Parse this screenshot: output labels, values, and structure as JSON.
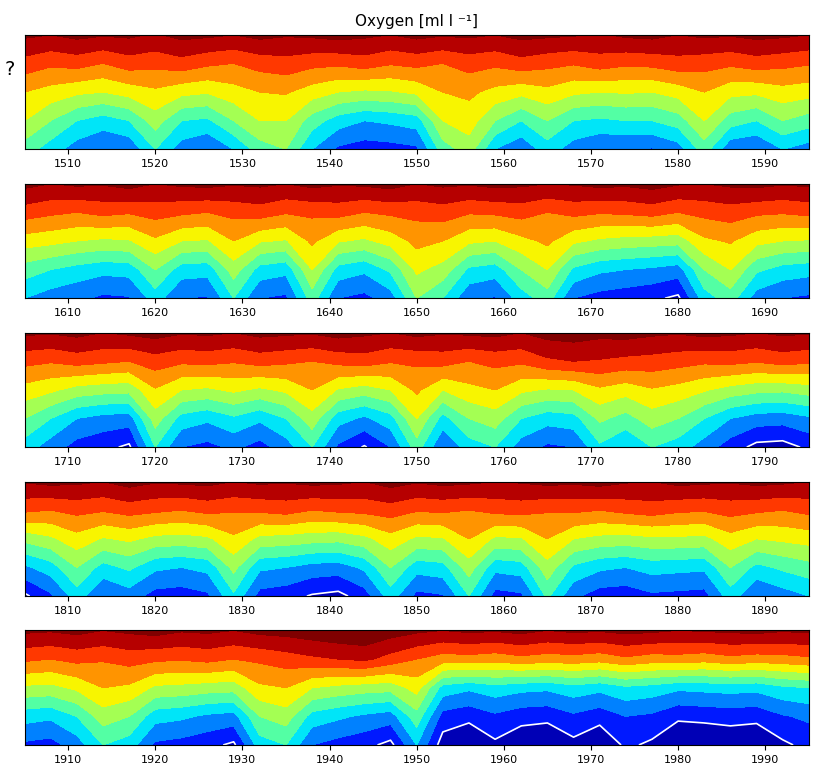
{
  "chart_data": [
    {
      "type": "contour",
      "title": "Oxygen [ml l ⁻¹]",
      "annotations": [
        "?"
      ],
      "tick_labels": "x",
      "x": [
        1505,
        1508,
        1511,
        1514,
        1517,
        1520,
        1523,
        1526,
        1529,
        1532,
        1535,
        1538,
        1541,
        1544,
        1547,
        1550,
        1553,
        1556,
        1559,
        1562,
        1565,
        1568,
        1571,
        1574,
        1577,
        1580,
        1583,
        1586,
        1589,
        1592,
        1595
      ],
      "xlim": [
        1505,
        1595
      ],
      "xticks": [
        1510,
        1520,
        1530,
        1540,
        1550,
        1560,
        1570,
        1580,
        1590
      ],
      "depth": [
        0,
        25,
        50,
        75,
        100
      ],
      "ylim": [
        100,
        0
      ],
      "yticks": [],
      "levels": [
        -1,
        0,
        1,
        2,
        3,
        4,
        5,
        6,
        7,
        8,
        9
      ],
      "contour_level": 0,
      "cells": [
        [
          9.2,
          9.0,
          9.3,
          9.1,
          9.2,
          8.9,
          9.3,
          9.2,
          9.0,
          9.3,
          9.1,
          9.2,
          9.4,
          9.2,
          9.0,
          9.3,
          9.1,
          9.2,
          9.0,
          9.3,
          9.2,
          9.1,
          8.9,
          9.2,
          9.3,
          9.0,
          9.2,
          9.1,
          9.3,
          9.2,
          9.0
        ],
        [
          7.6,
          7.2,
          7.4,
          7.0,
          7.5,
          7.3,
          7.6,
          7.2,
          7.0,
          7.4,
          7.6,
          7.3,
          7.2,
          7.5,
          7.1,
          7.3,
          7.0,
          7.4,
          7.2,
          7.6,
          7.3,
          7.1,
          7.5,
          7.2,
          7.3,
          7.6,
          7.4,
          7.2,
          7.5,
          7.3,
          7.1
        ],
        [
          6.0,
          5.6,
          5.2,
          5.0,
          5.4,
          5.8,
          5.3,
          5.1,
          5.6,
          6.0,
          6.1,
          5.5,
          5.0,
          4.8,
          4.9,
          5.2,
          6.0,
          6.2,
          5.7,
          5.3,
          5.7,
          5.2,
          5.0,
          5.1,
          5.0,
          5.4,
          6.0,
          5.3,
          5.2,
          5.6,
          5.4
        ],
        [
          5.0,
          4.0,
          3.0,
          2.5,
          3.0,
          4.5,
          3.0,
          2.8,
          4.0,
          5.0,
          5.0,
          3.5,
          2.5,
          2.0,
          2.2,
          2.5,
          5.0,
          5.5,
          4.0,
          3.0,
          4.0,
          3.0,
          2.8,
          3.0,
          3.0,
          3.5,
          5.0,
          3.5,
          3.0,
          4.0,
          3.5
        ],
        [
          3.5,
          2.5,
          1.5,
          1.0,
          1.2,
          3.0,
          1.5,
          1.0,
          2.0,
          3.5,
          4.0,
          2.0,
          0.8,
          0.5,
          0.6,
          0.8,
          3.5,
          4.5,
          2.0,
          1.2,
          2.5,
          1.5,
          1.0,
          1.0,
          0.9,
          1.5,
          3.5,
          1.2,
          1.0,
          2.0,
          1.5
        ]
      ]
    },
    {
      "type": "contour",
      "tick_labels": "x",
      "x": [
        1605,
        1608,
        1611,
        1614,
        1617,
        1620,
        1623,
        1626,
        1629,
        1632,
        1635,
        1638,
        1641,
        1644,
        1647,
        1650,
        1653,
        1656,
        1659,
        1662,
        1665,
        1668,
        1671,
        1674,
        1677,
        1680,
        1683,
        1686,
        1689,
        1692,
        1695
      ],
      "xlim": [
        1605,
        1695
      ],
      "xticks": [
        1610,
        1620,
        1630,
        1640,
        1650,
        1660,
        1670,
        1680,
        1690
      ],
      "depth": [
        0,
        25,
        50,
        75,
        100
      ],
      "ylim": [
        100,
        0
      ],
      "yticks": [],
      "levels": [
        -1,
        0,
        1,
        2,
        3,
        4,
        5,
        6,
        7,
        8,
        9
      ],
      "contour_level": 0,
      "cells": [
        [
          9.3,
          9.0,
          9.2,
          9.1,
          9.4,
          9.0,
          9.2,
          9.3,
          9.1,
          9.2,
          9.0,
          9.3,
          9.1,
          9.2,
          9.4,
          9.0,
          9.2,
          9.1,
          9.3,
          9.2,
          9.0,
          9.1,
          9.3,
          9.2,
          9.4,
          9.1,
          9.0,
          9.2,
          9.3,
          9.1,
          9.2
        ],
        [
          7.5,
          7.2,
          7.0,
          7.3,
          7.1,
          7.4,
          7.2,
          7.0,
          7.3,
          7.5,
          7.1,
          7.2,
          7.4,
          7.0,
          7.2,
          7.3,
          7.5,
          7.1,
          7.2,
          7.4,
          7.0,
          7.3,
          7.1,
          7.2,
          7.4,
          7.0,
          7.3,
          7.5,
          7.2,
          7.1,
          7.3
        ],
        [
          5.5,
          5.3,
          5.0,
          4.8,
          4.9,
          5.8,
          5.0,
          4.9,
          6.0,
          5.1,
          4.9,
          6.2,
          5.1,
          4.8,
          5.4,
          6.3,
          6.0,
          5.2,
          5.0,
          5.7,
          6.2,
          5.2,
          4.8,
          4.6,
          4.5,
          4.4,
          5.8,
          6.1,
          5.3,
          5.0,
          4.9
        ],
        [
          3.5,
          3.0,
          2.6,
          2.3,
          2.4,
          4.0,
          2.5,
          2.4,
          4.5,
          2.6,
          2.3,
          5.0,
          2.6,
          2.2,
          3.2,
          5.2,
          4.6,
          2.8,
          2.5,
          4.0,
          5.0,
          2.8,
          2.2,
          2.0,
          1.8,
          1.5,
          4.0,
          5.0,
          3.2,
          2.6,
          2.4
        ],
        [
          2.0,
          1.5,
          1.2,
          0.8,
          0.9,
          2.5,
          1.0,
          0.9,
          3.0,
          1.0,
          0.8,
          3.5,
          1.0,
          0.7,
          1.5,
          4.0,
          3.0,
          1.2,
          0.9,
          2.5,
          3.5,
          1.0,
          0.6,
          0.4,
          0.2,
          -0.2,
          2.5,
          3.5,
          1.5,
          1.0,
          0.8
        ]
      ]
    },
    {
      "type": "contour",
      "tick_labels": "x",
      "x": [
        1705,
        1708,
        1711,
        1714,
        1717,
        1720,
        1723,
        1726,
        1729,
        1732,
        1735,
        1738,
        1741,
        1744,
        1747,
        1750,
        1753,
        1756,
        1759,
        1762,
        1765,
        1768,
        1771,
        1774,
        1777,
        1780,
        1783,
        1786,
        1789,
        1792,
        1795
      ],
      "xlim": [
        1705,
        1795
      ],
      "xticks": [
        1710,
        1720,
        1730,
        1740,
        1750,
        1760,
        1770,
        1780,
        1790
      ],
      "depth": [
        0,
        25,
        50,
        75,
        100
      ],
      "ylim": [
        100,
        0
      ],
      "yticks": [],
      "levels": [
        -1,
        0,
        1,
        2,
        3,
        4,
        5,
        6,
        7,
        8,
        9
      ],
      "contour_level": 0,
      "cells": [
        [
          9.2,
          9.1,
          9.3,
          9.0,
          9.2,
          9.4,
          9.1,
          9.2,
          9.0,
          9.3,
          9.2,
          9.1,
          9.4,
          9.2,
          9.0,
          9.3,
          9.1,
          9.2,
          9.3,
          9.0,
          9.4,
          9.5,
          9.3,
          9.4,
          9.2,
          9.1,
          9.3,
          9.2,
          9.0,
          9.2,
          9.1
        ],
        [
          7.3,
          7.1,
          7.4,
          7.2,
          7.0,
          7.5,
          7.2,
          7.3,
          7.1,
          7.4,
          7.2,
          7.0,
          7.3,
          7.5,
          7.1,
          7.2,
          7.4,
          7.0,
          7.3,
          7.2,
          7.8,
          8.0,
          7.9,
          7.7,
          7.6,
          7.4,
          7.2,
          7.3,
          7.1,
          7.4,
          7.2
        ],
        [
          5.6,
          5.2,
          4.6,
          4.4,
          4.3,
          5.9,
          5.0,
          4.8,
          5.2,
          4.8,
          5.2,
          6.0,
          4.9,
          4.5,
          5.0,
          6.2,
          5.0,
          5.7,
          6.0,
          5.2,
          4.9,
          5.0,
          5.8,
          5.4,
          5.9,
          5.6,
          5.1,
          4.6,
          4.3,
          4.2,
          4.5
        ],
        [
          4.0,
          3.0,
          2.0,
          1.6,
          1.5,
          4.5,
          2.6,
          2.2,
          2.8,
          2.2,
          3.0,
          4.6,
          2.4,
          1.8,
          2.6,
          5.0,
          2.6,
          4.0,
          4.5,
          3.0,
          2.4,
          2.6,
          4.2,
          3.6,
          4.5,
          4.0,
          3.0,
          2.0,
          1.5,
          1.4,
          1.8
        ],
        [
          2.5,
          1.5,
          0.6,
          0.3,
          -0.2,
          3.0,
          1.0,
          0.7,
          1.2,
          0.6,
          1.5,
          3.0,
          0.8,
          -0.1,
          1.0,
          3.5,
          1.0,
          2.5,
          3.0,
          1.5,
          0.8,
          1.0,
          2.8,
          2.0,
          3.0,
          2.5,
          1.5,
          0.5,
          -0.3,
          -0.4,
          0.2
        ]
      ]
    },
    {
      "type": "contour",
      "tick_labels": "x",
      "x": [
        1805,
        1808,
        1811,
        1814,
        1817,
        1820,
        1823,
        1826,
        1829,
        1832,
        1835,
        1838,
        1841,
        1844,
        1847,
        1850,
        1853,
        1856,
        1859,
        1862,
        1865,
        1868,
        1871,
        1874,
        1877,
        1880,
        1883,
        1886,
        1889,
        1892,
        1895
      ],
      "xlim": [
        1805,
        1895
      ],
      "xticks": [
        1810,
        1820,
        1830,
        1840,
        1850,
        1860,
        1870,
        1880,
        1890
      ],
      "depth": [
        0,
        25,
        50,
        75,
        100
      ],
      "ylim": [
        100,
        0
      ],
      "yticks": [],
      "levels": [
        -1,
        0,
        1,
        2,
        3,
        4,
        5,
        6,
        7,
        8,
        9
      ],
      "contour_level": 0,
      "cells": [
        [
          9.1,
          9.3,
          9.2,
          9.0,
          9.4,
          9.1,
          9.2,
          9.3,
          9.0,
          9.2,
          9.1,
          9.3,
          9.2,
          9.0,
          9.4,
          9.1,
          9.3,
          9.2,
          9.0,
          9.1,
          9.3,
          9.2,
          9.4,
          9.1,
          9.0,
          9.3,
          9.2,
          9.1,
          9.3,
          9.2,
          9.0
        ],
        [
          7.2,
          7.0,
          7.3,
          7.1,
          7.4,
          7.2,
          7.0,
          7.3,
          7.1,
          7.2,
          7.4,
          7.0,
          7.2,
          7.3,
          7.5,
          7.1,
          7.2,
          7.0,
          7.3,
          7.4,
          7.1,
          7.2,
          7.0,
          7.3,
          7.5,
          7.2,
          7.1,
          7.4,
          7.2,
          7.0,
          7.3
        ],
        [
          4.3,
          4.8,
          5.6,
          4.9,
          5.2,
          4.7,
          4.6,
          4.8,
          5.8,
          4.7,
          4.6,
          4.4,
          4.3,
          4.7,
          5.6,
          4.8,
          4.9,
          6.0,
          4.8,
          4.9,
          6.0,
          5.0,
          4.7,
          4.6,
          4.8,
          4.8,
          4.7,
          5.6,
          5.0,
          5.2,
          5.4
        ],
        [
          1.8,
          2.5,
          4.0,
          2.6,
          3.2,
          2.2,
          2.0,
          2.3,
          4.3,
          2.2,
          2.0,
          1.6,
          1.5,
          2.2,
          4.0,
          2.4,
          2.6,
          4.5,
          2.3,
          2.5,
          4.6,
          2.8,
          2.2,
          2.0,
          2.4,
          2.3,
          2.2,
          4.0,
          2.7,
          3.2,
          3.6
        ],
        [
          -0.2,
          0.8,
          2.5,
          1.0,
          1.5,
          0.6,
          0.5,
          0.8,
          2.8,
          0.6,
          0.4,
          -0.1,
          -0.3,
          0.5,
          2.5,
          0.7,
          0.9,
          3.0,
          0.6,
          0.8,
          3.2,
          1.2,
          0.5,
          0.4,
          0.8,
          0.7,
          0.6,
          2.5,
          1.0,
          1.5,
          2.0
        ]
      ]
    },
    {
      "type": "contour",
      "tick_labels": "x",
      "x": [
        1905,
        1908,
        1911,
        1914,
        1917,
        1920,
        1923,
        1926,
        1929,
        1932,
        1935,
        1938,
        1941,
        1944,
        1947,
        1950,
        1953,
        1956,
        1959,
        1962,
        1965,
        1968,
        1971,
        1974,
        1977,
        1980,
        1983,
        1986,
        1989,
        1992,
        1995
      ],
      "xlim": [
        1905,
        1995
      ],
      "xticks": [
        1910,
        1920,
        1930,
        1940,
        1950,
        1960,
        1970,
        1980,
        1990
      ],
      "depth": [
        0,
        25,
        50,
        75,
        100
      ],
      "ylim": [
        100,
        0
      ],
      "yticks": [],
      "levels": [
        -1,
        0,
        1,
        2,
        3,
        4,
        5,
        6,
        7,
        8,
        9
      ],
      "contour_level": 0,
      "cells": [
        [
          9.2,
          9.1,
          9.3,
          9.0,
          9.2,
          9.4,
          9.1,
          9.2,
          9.0,
          9.3,
          9.4,
          9.6,
          9.8,
          9.9,
          9.5,
          9.2,
          9.0,
          9.2,
          9.1,
          9.3,
          9.0,
          9.2,
          9.1,
          9.3,
          9.2,
          9.0,
          9.1,
          9.2,
          9.3,
          9.1,
          9.2
        ],
        [
          7.2,
          7.0,
          7.3,
          7.1,
          7.4,
          7.2,
          7.1,
          7.3,
          7.0,
          7.2,
          7.5,
          7.8,
          8.0,
          8.2,
          7.6,
          7.0,
          6.5,
          6.6,
          6.4,
          6.7,
          6.5,
          6.6,
          6.4,
          6.8,
          6.5,
          6.6,
          6.4,
          6.7,
          6.5,
          6.6,
          6.8
        ],
        [
          4.8,
          4.7,
          5.2,
          6.0,
          5.8,
          4.8,
          4.7,
          4.5,
          4.4,
          5.8,
          6.0,
          5.0,
          4.7,
          4.5,
          4.4,
          5.4,
          2.6,
          2.2,
          2.6,
          2.3,
          2.2,
          2.6,
          2.3,
          2.8,
          2.6,
          2.2,
          2.3,
          2.4,
          2.3,
          2.8,
          3.0
        ],
        [
          2.4,
          2.2,
          3.0,
          4.5,
          4.0,
          2.4,
          2.2,
          1.8,
          1.6,
          4.0,
          4.5,
          2.6,
          2.2,
          1.8,
          1.5,
          3.6,
          0.6,
          0.3,
          0.8,
          0.4,
          0.3,
          0.8,
          0.4,
          1.0,
          0.8,
          0.2,
          0.3,
          0.4,
          0.3,
          0.9,
          1.2
        ],
        [
          0.8,
          0.6,
          1.5,
          3.0,
          2.5,
          0.8,
          0.6,
          0.3,
          -0.2,
          2.5,
          3.0,
          1.0,
          0.6,
          0.3,
          -0.3,
          2.0,
          -0.5,
          -1.0,
          -0.2,
          -0.8,
          -1.0,
          -0.3,
          -0.9,
          0.2,
          -0.2,
          -1.0,
          -1.0,
          -0.8,
          -0.9,
          -0.2,
          0.3
        ]
      ]
    }
  ]
}
